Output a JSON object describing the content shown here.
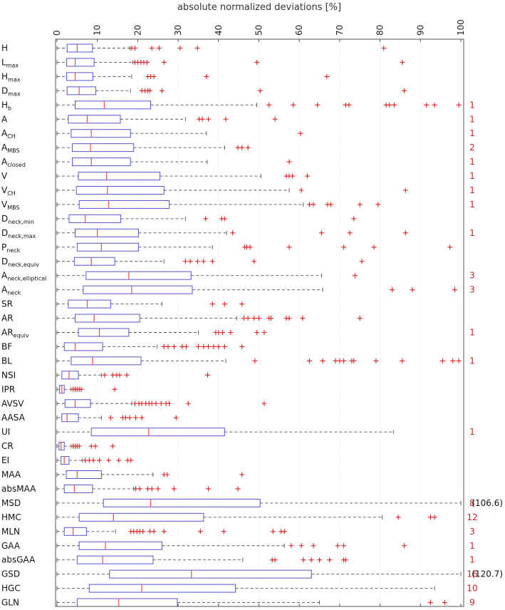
{
  "chart_data": {
    "type": "boxplot",
    "title": "absolute normalized deviations [%]",
    "xlim": [
      0,
      100
    ],
    "xticks": [
      "0",
      "10",
      "20",
      "30",
      "40",
      "50",
      "60",
      "70",
      "80",
      "90",
      "100"
    ],
    "xtick_values": [
      0,
      10,
      20,
      30,
      40,
      50,
      60,
      70,
      80,
      90,
      100
    ],
    "colors": {
      "box": "#5555cc",
      "median": "#e05050",
      "outlier": "#dd2222",
      "whisker": "#555555"
    },
    "rows": [
      {
        "name": "H",
        "sub": "",
        "q1": 2.5,
        "med": 5.0,
        "q3": 8.8,
        "wmin": 0,
        "wmax": 18,
        "outliers": [
          18.5,
          19.3,
          23.5,
          25.3,
          30.5,
          34.8,
          80.9
        ],
        "count": "",
        "note": ""
      },
      {
        "name": "L",
        "sub": "max",
        "q1": 2.4,
        "med": 4.5,
        "q3": 9.2,
        "wmin": 0,
        "wmax": 18.8,
        "outliers": [
          19.3,
          20,
          20.8,
          21.5,
          22.3,
          26.5,
          49.5,
          85.5
        ],
        "count": "",
        "note": ""
      },
      {
        "name": "H",
        "sub": "max",
        "q1": 2.4,
        "med": 4.5,
        "q3": 8.9,
        "wmin": 0,
        "wmax": 18.5,
        "outliers": [
          22.5,
          23.2,
          24,
          37,
          66.8
        ],
        "count": "",
        "note": ""
      },
      {
        "name": "D",
        "sub": "max",
        "q1": 2.5,
        "med": 5.5,
        "q3": 9.6,
        "wmin": 0,
        "wmax": 18.2,
        "outliers": [
          21,
          21.8,
          22.5,
          23,
          26,
          50.3,
          86
        ],
        "count": "",
        "note": ""
      },
      {
        "name": "H",
        "sub": "b",
        "q1": 4.5,
        "med": 11.7,
        "q3": 23.2,
        "wmin": 0,
        "wmax": 49.5,
        "outliers": [
          52.5,
          58.5,
          64.5,
          71.5,
          72.3,
          81.5,
          82.3,
          83.5,
          91.5,
          93.5,
          99.5
        ],
        "count": "1",
        "note": ""
      },
      {
        "name": "A",
        "sub": "",
        "q1": 2.8,
        "med": 7.5,
        "q3": 15.7,
        "wmin": 0,
        "wmax": 31.8,
        "outliers": [
          35.2,
          36,
          37.5,
          41.8,
          54
        ],
        "count": "1",
        "note": ""
      },
      {
        "name": "A",
        "sub": "CH",
        "q1": 3.5,
        "med": 8.5,
        "q3": 18.2,
        "wmin": 0,
        "wmax": 37,
        "outliers": [
          60.3
        ],
        "count": "1",
        "note": ""
      },
      {
        "name": "A",
        "sub": "MBS",
        "q1": 3.8,
        "med": 8.3,
        "q3": 19,
        "wmin": 0,
        "wmax": 41.5,
        "outliers": [
          44.8,
          45.8,
          47.3
        ],
        "count": "2",
        "note": ""
      },
      {
        "name": "A",
        "sub": "closed",
        "q1": 3.8,
        "med": 8.5,
        "q3": 18.2,
        "wmin": 0,
        "wmax": 37.2,
        "outliers": [
          57.5
        ],
        "count": "1",
        "note": ""
      },
      {
        "name": "V",
        "sub": "",
        "q1": 5.3,
        "med": 12.3,
        "q3": 25.5,
        "wmin": 0,
        "wmax": 50.5,
        "outliers": [
          56.8,
          57.5,
          58.3,
          62
        ],
        "count": "1",
        "note": ""
      },
      {
        "name": "V",
        "sub": "CH",
        "q1": 4.8,
        "med": 12.5,
        "q3": 26.5,
        "wmin": 0,
        "wmax": 57.5,
        "outliers": [
          60.5,
          86.3
        ],
        "count": "1",
        "note": ""
      },
      {
        "name": "V",
        "sub": "MBS",
        "q1": 5.5,
        "med": 12.8,
        "q3": 27.8,
        "wmin": 0,
        "wmax": 61,
        "outliers": [
          62.5,
          63.5,
          67,
          67.8,
          75,
          79.5
        ],
        "count": "1",
        "note": ""
      },
      {
        "name": "D",
        "sub": "neck,min",
        "q1": 3,
        "med": 7,
        "q3": 15.8,
        "wmin": 0,
        "wmax": 31.8,
        "outliers": [
          36.8,
          40.8,
          41.5,
          73.5
        ],
        "count": "",
        "note": ""
      },
      {
        "name": "D",
        "sub": "neck,max",
        "q1": 4.5,
        "med": 10,
        "q3": 20.2,
        "wmin": 0,
        "wmax": 42,
        "outliers": [
          43.5,
          65.5,
          72.5,
          86.3
        ],
        "count": "1",
        "note": ""
      },
      {
        "name": "P",
        "sub": "neck",
        "q1": 5,
        "med": 11,
        "q3": 20.2,
        "wmin": 0,
        "wmax": 38.5,
        "outliers": [
          46.5,
          47,
          47.8,
          57.5,
          71,
          78.5,
          97.3
        ],
        "count": "",
        "note": ""
      },
      {
        "name": "D",
        "sub": "neck,equiv",
        "q1": 4.3,
        "med": 8.5,
        "q3": 14.3,
        "wmin": 0,
        "wmax": 26.5,
        "outliers": [
          31.8,
          33,
          34.8,
          36.3,
          38.5,
          48.8,
          75.5
        ],
        "count": "",
        "note": ""
      },
      {
        "name": "A",
        "sub": "neck,elliptical",
        "q1": 7.2,
        "med": 17.8,
        "q3": 33.2,
        "wmin": 0,
        "wmax": 65.5,
        "outliers": [
          73.8
        ],
        "count": "3",
        "note": ""
      },
      {
        "name": "A",
        "sub": "neck",
        "q1": 6.5,
        "med": 18.5,
        "q3": 33.5,
        "wmin": 0,
        "wmax": 65.8,
        "outliers": [
          83,
          88,
          98.5
        ],
        "count": "3",
        "note": ""
      },
      {
        "name": "SR",
        "sub": "",
        "q1": 2.8,
        "med": 7.5,
        "q3": 13.3,
        "wmin": 0,
        "wmax": 26,
        "outliers": [
          38.5,
          41.5,
          45.8
        ],
        "count": "",
        "note": ""
      },
      {
        "name": "AR",
        "sub": "",
        "q1": 4.5,
        "med": 9.2,
        "q3": 20.5,
        "wmin": 0,
        "wmax": 44.5,
        "outliers": [
          46.3,
          47.3,
          48.8,
          50,
          52.5,
          53,
          56.8,
          57.5,
          60.8,
          75
        ],
        "count": "",
        "note": ""
      },
      {
        "name": "AR",
        "sub": "equiv",
        "q1": 5.3,
        "med": 10.5,
        "q3": 17.8,
        "wmin": 0,
        "wmax": 35,
        "outliers": [
          39.3,
          40,
          41,
          43,
          49.5,
          51.3
        ],
        "count": "1",
        "note": ""
      },
      {
        "name": "BF",
        "sub": "",
        "q1": 1.8,
        "med": 4.5,
        "q3": 11.3,
        "wmin": 0,
        "wmax": 24.8,
        "outliers": [
          26.5,
          27.5,
          29,
          31,
          32,
          35,
          36.3,
          37.5,
          38.8,
          40,
          41.5,
          45.8
        ],
        "count": "",
        "note": ""
      },
      {
        "name": "BL",
        "sub": "",
        "q1": 3.5,
        "med": 8.8,
        "q3": 20.8,
        "wmin": 0,
        "wmax": 41.8,
        "outliers": [
          49,
          62.5,
          65.8,
          69,
          70,
          71,
          73,
          73.5,
          79,
          85.5,
          95.5,
          98,
          99.5
        ],
        "count": "1",
        "note": ""
      },
      {
        "name": "NSI",
        "sub": "",
        "q1": 1.2,
        "med": 3,
        "q3": 5.3,
        "wmin": 0,
        "wmax": 11,
        "outliers": [
          11.8,
          13.8,
          14.8,
          15.5,
          17.3,
          37.3
        ],
        "count": "",
        "note": ""
      },
      {
        "name": "IPR",
        "sub": "",
        "q1": 0.6,
        "med": 1.2,
        "q3": 1.8,
        "wmin": 0,
        "wmax": 3.5,
        "outliers": [
          4,
          4.5,
          5,
          5.5,
          6,
          14.3
        ],
        "count": "",
        "note": ""
      },
      {
        "name": "AVSV",
        "sub": "",
        "q1": 2,
        "med": 4.5,
        "q3": 8.3,
        "wmin": 0,
        "wmax": 18.5,
        "outliers": [
          19.3,
          20.3,
          21,
          22,
          22.8,
          23.5,
          24.5,
          25.8,
          27,
          27.8,
          32.5,
          51.3
        ],
        "count": "",
        "note": ""
      },
      {
        "name": "AASA",
        "sub": "",
        "q1": 1.2,
        "med": 2.5,
        "q3": 5.3,
        "wmin": 0,
        "wmax": 11,
        "outliers": [
          13.3,
          16.3,
          17,
          18,
          19.5,
          21,
          29.5
        ],
        "count": "",
        "note": ""
      },
      {
        "name": "UI",
        "sub": "",
        "q1": 8.5,
        "med": 22.7,
        "q3": 41.5,
        "wmin": 0,
        "wmax": 83.3,
        "outliers": [],
        "count": "1",
        "note": ""
      },
      {
        "name": "CR",
        "sub": "",
        "q1": 0.5,
        "med": 1,
        "q3": 1.8,
        "wmin": 0,
        "wmax": 3.5,
        "outliers": [
          4,
          4.5,
          5,
          5.5,
          8.5,
          9.5,
          13.8
        ],
        "count": "",
        "note": ""
      },
      {
        "name": "EI",
        "sub": "",
        "q1": 1,
        "med": 1.8,
        "q3": 3,
        "wmin": 0,
        "wmax": 6.3,
        "outliers": [
          7,
          8,
          9,
          10.5,
          12.8,
          15.3,
          17.5,
          18.3
        ],
        "count": "",
        "note": ""
      },
      {
        "name": "MAA",
        "sub": "",
        "q1": 2.3,
        "med": 5,
        "q3": 11,
        "wmin": 0,
        "wmax": 23.8,
        "outliers": [
          26.5,
          27.3,
          45.8
        ],
        "count": "",
        "note": ""
      },
      {
        "name": "absMAA",
        "sub": "",
        "q1": 1.8,
        "med": 4.3,
        "q3": 8.8,
        "wmin": 0,
        "wmax": 19,
        "outliers": [
          19.5,
          20.5,
          22.5,
          23.5,
          25,
          29,
          37.5,
          44.8
        ],
        "count": "",
        "note": ""
      },
      {
        "name": "MSD",
        "sub": "",
        "q1": 11.5,
        "med": 23.2,
        "q3": 50.3,
        "wmin": 0,
        "wmax": 100,
        "outliers": [],
        "count": "8",
        "note": "(106.6)"
      },
      {
        "name": "HMC",
        "sub": "",
        "q1": 5.5,
        "med": 14,
        "q3": 36.3,
        "wmin": 0,
        "wmax": 80.5,
        "outliers": [
          84.5,
          92.5,
          93.5
        ],
        "count": "12",
        "note": ""
      },
      {
        "name": "MLN",
        "sub": "",
        "q1": 1.8,
        "med": 4,
        "q3": 7.3,
        "wmin": 0,
        "wmax": 14.5,
        "outliers": [
          18.3,
          19,
          19.8,
          20.5,
          21.3,
          23,
          24,
          26.5,
          35.5,
          41.3,
          53.5,
          55.5,
          56.3
        ],
        "count": "3",
        "note": ""
      },
      {
        "name": "GAA",
        "sub": "",
        "q1": 5.5,
        "med": 12,
        "q3": 26,
        "wmin": 0,
        "wmax": 56.3,
        "outliers": [
          58,
          60.5,
          63.5,
          69.5,
          71,
          86
        ],
        "count": "1",
        "note": ""
      },
      {
        "name": "absGAA",
        "sub": "",
        "q1": 5,
        "med": 11.3,
        "q3": 23.8,
        "wmin": 0,
        "wmax": 46,
        "outliers": [
          53.3,
          54,
          61,
          63,
          65,
          67.5,
          71,
          71.5
        ],
        "count": "1",
        "note": ""
      },
      {
        "name": "GSD",
        "sub": "",
        "q1": 13,
        "med": 33.3,
        "q3": 63,
        "wmin": 0,
        "wmax": 100,
        "outliers": [],
        "count": "16",
        "note": "(120.7)"
      },
      {
        "name": "HGC",
        "sub": "",
        "q1": 8,
        "med": 21,
        "q3": 44.2,
        "wmin": 0,
        "wmax": 93.5,
        "outliers": [],
        "count": "10",
        "note": ""
      },
      {
        "name": "GLN",
        "sub": "",
        "q1": 5,
        "med": 15.3,
        "q3": 29.8,
        "wmin": 0,
        "wmax": 65,
        "outliers": [
          92.5,
          96
        ],
        "count": "9",
        "note": ""
      }
    ]
  }
}
